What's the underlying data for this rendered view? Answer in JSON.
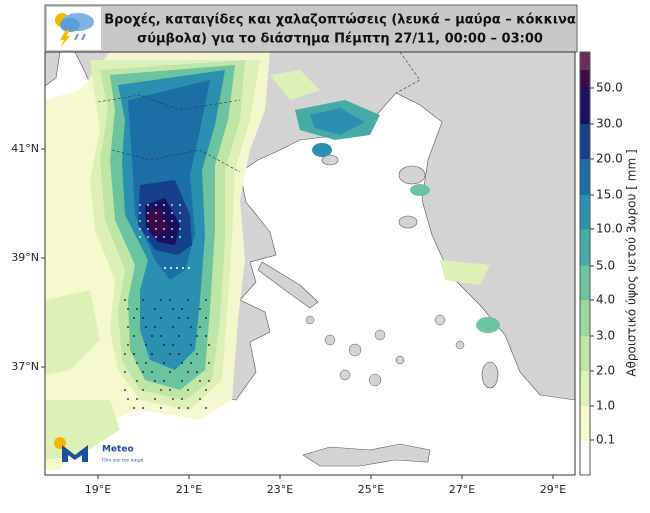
{
  "title": [
    "Βροχές, καταιγίδες και χαλαζοπτώσεις (λευκά – μαύρα – κόκκινα",
    "σύμβολα) για το διάστημα Πέμπτη 27/11, 00:00 – 03:00"
  ],
  "longitude_labels": [
    "19°E",
    "21°E",
    "23°E",
    "25°E",
    "27°E",
    "29°E"
  ],
  "latitude_labels": [
    "41°N",
    "39°N",
    "37°N"
  ],
  "colorbar": {
    "title": "Αθροιστικό ύψος υετού 3ωρου [ mm ]",
    "labels": [
      "0.1",
      "1.0",
      "2.0",
      "3.0",
      "4.0",
      "5.0",
      "10.0",
      "15.0",
      "20.0",
      "30.0",
      "50.0"
    ]
  },
  "logo": {
    "name": "Meteo",
    "tagline": "Όλα για τον καιρό"
  }
}
